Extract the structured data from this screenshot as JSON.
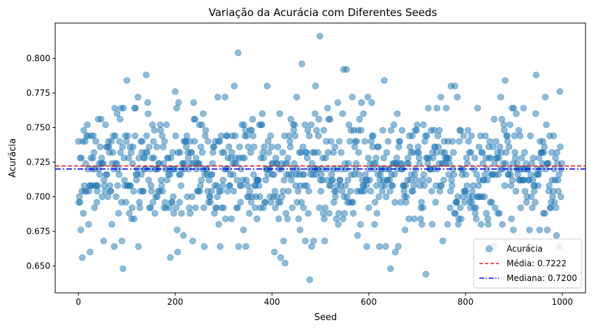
{
  "chart_data": {
    "type": "scatter",
    "title": "Variação da Acurácia com Diferentes Seeds",
    "xlabel": "Seed",
    "ylabel": "Acurácia",
    "xlim": [
      -48,
      1048
    ],
    "ylim": [
      0.6305,
      0.8255
    ],
    "xticks": [
      0,
      200,
      400,
      600,
      800,
      1000
    ],
    "yticks": [
      0.65,
      0.675,
      0.7,
      0.725,
      0.75,
      0.775,
      0.8
    ],
    "grid": false,
    "legend_position": "lower-right",
    "series": [
      {
        "name": "Acurácia",
        "kind": "scatter",
        "color": "#1f77b4",
        "alpha": 0.5,
        "n_points": 1000,
        "seed_range": [
          0,
          999
        ],
        "mean": 0.7222,
        "median": 0.72,
        "min": 0.64,
        "max": 0.816,
        "x_at_min": 478,
        "x_at_max": 499,
        "step": 0.004,
        "highlighted_points": [
          {
            "x": 499,
            "y": 0.816
          },
          {
            "x": 330,
            "y": 0.804
          },
          {
            "x": 462,
            "y": 0.796
          },
          {
            "x": 548,
            "y": 0.792
          },
          {
            "x": 554,
            "y": 0.792
          },
          {
            "x": 140,
            "y": 0.788
          },
          {
            "x": 946,
            "y": 0.788
          },
          {
            "x": 100,
            "y": 0.784
          },
          {
            "x": 405,
            "y": 0.784
          },
          {
            "x": 632,
            "y": 0.784
          },
          {
            "x": 882,
            "y": 0.784
          },
          {
            "x": 322,
            "y": 0.78
          },
          {
            "x": 390,
            "y": 0.78
          },
          {
            "x": 490,
            "y": 0.78
          },
          {
            "x": 770,
            "y": 0.78
          },
          {
            "x": 778,
            "y": 0.78
          },
          {
            "x": 995,
            "y": 0.776
          },
          {
            "x": 200,
            "y": 0.776
          },
          {
            "x": 405,
            "y": 0.66
          },
          {
            "x": 418,
            "y": 0.656
          },
          {
            "x": 427,
            "y": 0.652
          },
          {
            "x": 92,
            "y": 0.648
          },
          {
            "x": 645,
            "y": 0.648
          },
          {
            "x": 718,
            "y": 0.644
          },
          {
            "x": 478,
            "y": 0.64
          },
          {
            "x": 190,
            "y": 0.656
          },
          {
            "x": 8,
            "y": 0.656
          },
          {
            "x": 24,
            "y": 0.66
          },
          {
            "x": 205,
            "y": 0.66
          },
          {
            "x": 655,
            "y": 0.66
          }
        ]
      },
      {
        "name": "Média: 0.7222",
        "kind": "hline",
        "value": 0.7222,
        "color": "#e41a1c",
        "linestyle": "dashed"
      },
      {
        "name": "Mediana: 0.7200",
        "kind": "hline",
        "value": 0.72,
        "color": "#0000ff",
        "linestyle": "dashdot"
      }
    ]
  }
}
